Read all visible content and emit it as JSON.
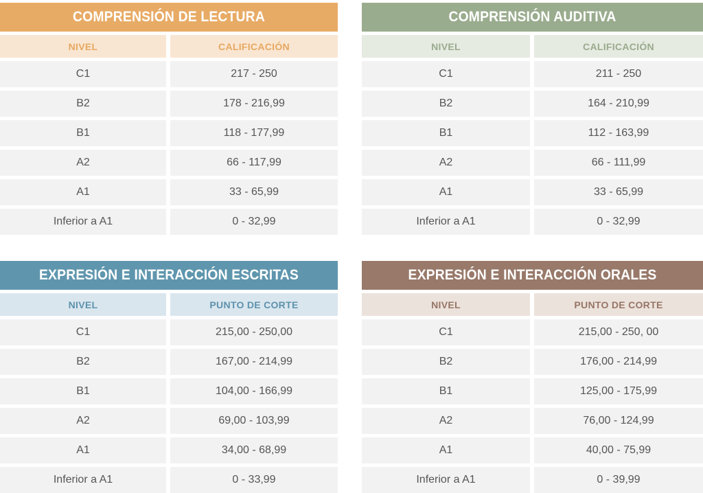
{
  "colors": {
    "lectura_title": "#e8ab66",
    "lectura_header_bg": "#f9e6d2",
    "lectura_header_text": "#e7a861",
    "auditiva_title": "#9aac8e",
    "auditiva_header_bg": "#e6ebe2",
    "auditiva_header_text": "#9aaa8c",
    "escritas_title": "#5f96ae",
    "escritas_header_bg": "#dae6ee",
    "escritas_header_text": "#5d92ac",
    "orales_title": "#98796a",
    "orales_header_bg": "#ece2dc",
    "orales_header_text": "#967565",
    "cell_bg": "#f2f2f2",
    "cell_text": "#555555"
  },
  "tables": {
    "lectura": {
      "title": "COMPRENSIÓN DE LECTURA",
      "col1": "NIVEL",
      "col2": "CALIFICACIÓN",
      "rows": [
        {
          "level": "C1",
          "value": "217 - 250"
        },
        {
          "level": "B2",
          "value": "178 - 216,99"
        },
        {
          "level": "B1",
          "value": "118 - 177,99"
        },
        {
          "level": "A2",
          "value": "66 - 117,99"
        },
        {
          "level": "A1",
          "value": "33 - 65,99"
        },
        {
          "level": "Inferior a A1",
          "value": "0 - 32,99"
        }
      ]
    },
    "auditiva": {
      "title": "COMPRENSIÓN AUDITIVA",
      "col1": "NIVEL",
      "col2": "CALIFICACIÓN",
      "rows": [
        {
          "level": "C1",
          "value": "211 - 250"
        },
        {
          "level": "B2",
          "value": "164 - 210,99"
        },
        {
          "level": "B1",
          "value": "112 - 163,99"
        },
        {
          "level": "A2",
          "value": "66 - 111,99"
        },
        {
          "level": "A1",
          "value": "33 - 65,99"
        },
        {
          "level": "Inferior a A1",
          "value": "0 - 32,99"
        }
      ]
    },
    "escritas": {
      "title": "EXPRESIÓN E INTERACCIÓN ESCRITAS",
      "col1": "NIVEL",
      "col2": "PUNTO DE CORTE",
      "rows": [
        {
          "level": "C1",
          "value": "215,00 - 250,00"
        },
        {
          "level": "B2",
          "value": "167,00 - 214,99"
        },
        {
          "level": "B1",
          "value": "104,00 - 166,99"
        },
        {
          "level": "A2",
          "value": "69,00 - 103,99"
        },
        {
          "level": "A1",
          "value": "34,00 - 68,99"
        },
        {
          "level": "Inferior a A1",
          "value": "0 - 33,99"
        }
      ]
    },
    "orales": {
      "title": "EXPRESIÓN E INTERACCIÓN ORALES",
      "col1": "NIVEL",
      "col2": "PUNTO DE CORTE",
      "rows": [
        {
          "level": "C1",
          "value": "215,00 - 250, 00"
        },
        {
          "level": "B2",
          "value": "176,00 - 214,99"
        },
        {
          "level": "B1",
          "value": "125,00 - 175,99"
        },
        {
          "level": "A2",
          "value": "76,00 - 124,99"
        },
        {
          "level": "A1",
          "value": "40,00 - 75,99"
        },
        {
          "level": "Inferior a A1",
          "value": "0 - 39,99"
        }
      ]
    }
  }
}
